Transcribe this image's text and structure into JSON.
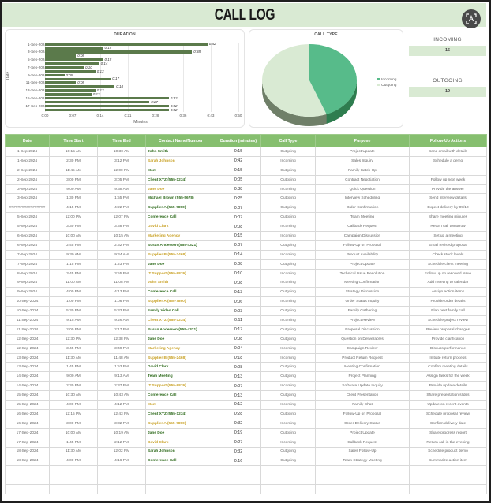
{
  "title": "CALL LOG",
  "ocr_button": {
    "icon": "text-recognition-icon"
  },
  "kpis": {
    "incoming_label": "INCOMING",
    "incoming_value": "15",
    "outgoing_label": "OUTGOING",
    "outgoing_value": "19"
  },
  "colors": {
    "title_bg": "#d9ead3",
    "header_bg": "#86bf6f",
    "bar": "#5b7a4b",
    "incoming_slice": "#57bb8a",
    "outgoing_slice": "#d9ead3",
    "contact_green": "#2f6b1d",
    "contact_yellow": "#c9a227"
  },
  "chart_data": [
    {
      "type": "bar",
      "title": "DURATION",
      "xlabel": "Minutes",
      "ylabel": "Date",
      "orientation": "horizontal",
      "xticks": [
        "0:00",
        "0:07",
        "0:14",
        "0:21",
        "0:28",
        "0:36",
        "0:43",
        "0:50"
      ],
      "xlim": [
        0,
        50
      ],
      "ytick_labels": [
        "1-Sep-2024",
        "3-Sep-2024",
        "5-Sep-2024",
        "7-Sep-2024",
        "9-Sep-2024",
        "11-Sep-2024",
        "13-Sep-2024",
        "15-Sep-2024",
        "17-Sep-2024"
      ],
      "categories": [
        "1-Sep-2024",
        "1-Sep-2024",
        "3-Sep-2024",
        "5-Sep-2024",
        "5-Sep-2024",
        "7-Sep-2024",
        "7-Sep-2024",
        "9-Sep-2024",
        "9-Sep-2024",
        "11-Sep-2024",
        "11-Sep-2024",
        "13-Sep-2024",
        "13-Sep-2024",
        "15-Sep-2024",
        "15-Sep-2024",
        "17-Sep-2024",
        "17-Sep-2024",
        "18-Sep-2024"
      ],
      "values": [
        42,
        15,
        38,
        8,
        15,
        14,
        10,
        13,
        5,
        17,
        8,
        18,
        13,
        12,
        32,
        27,
        32,
        32
      ],
      "labels": [
        "0:42",
        "0:15",
        "0:38",
        "0:08",
        "0:15",
        "0:14",
        "0:10",
        "0:13",
        "0:05",
        "0:17",
        "0:08",
        "0:18",
        "0:13",
        "0:12",
        "0:32",
        "0:27",
        "0:32",
        "0:32"
      ],
      "grid": true
    },
    {
      "type": "pie",
      "title": "CALL TYPE",
      "categories": [
        "Incoming",
        "Outgoing"
      ],
      "values": [
        15,
        19
      ],
      "legend_position": "right"
    }
  ],
  "table": {
    "headers": [
      "Date",
      "Time Start",
      "Time End",
      "Contact Name/Number",
      "Duration (minutes)",
      "Call Type",
      "Purpose",
      "Follow-Up Actions"
    ],
    "rows": [
      {
        "date": "1-Sep-2024",
        "start": "10:15 AM",
        "end": "10:30 AM",
        "contact": "John Smith",
        "tone": "green",
        "duration": "0:15",
        "type": "Outgoing",
        "purpose": "Project Update",
        "followup": "Send email with details"
      },
      {
        "date": "1-Sep-2024",
        "start": "2:30 PM",
        "end": "3:12 PM",
        "contact": "Sarah Johnson",
        "tone": "yellow",
        "duration": "0:42",
        "type": "Incoming",
        "purpose": "Sales Inquiry",
        "followup": "Schedule a demo"
      },
      {
        "date": "2-Sep-2024",
        "start": "11:45 AM",
        "end": "12:00 PM",
        "contact": "Mom",
        "tone": "green",
        "duration": "0:15",
        "type": "Outgoing",
        "purpose": "Family Catch-Up",
        "followup": ""
      },
      {
        "date": "2-Sep-2024",
        "start": "3:00 PM",
        "end": "3:05 PM",
        "contact": "Client XYZ (555-1234)",
        "tone": "green",
        "duration": "0:05",
        "type": "Outgoing",
        "purpose": "Contract Negotiation",
        "followup": "Follow up next week"
      },
      {
        "date": "3-Sep-2024",
        "start": "9:00 AM",
        "end": "9:38 AM",
        "contact": "Jane Doe",
        "tone": "yellow",
        "duration": "0:38",
        "type": "Incoming",
        "purpose": "Quick Question",
        "followup": "Provide the answer"
      },
      {
        "date": "3-Sep-2024",
        "start": "1:30 PM",
        "end": "1:55 PM",
        "contact": "Michael Brown (555-5678)",
        "tone": "green",
        "duration": "0:25",
        "type": "Outgoing",
        "purpose": "Interview Scheduling",
        "followup": "Send interview details"
      },
      {
        "date": "#################",
        "start": "4:15 PM",
        "end": "4:22 PM",
        "contact": "Supplier A (555-7890)",
        "tone": "green",
        "duration": "0:07",
        "type": "Outgoing",
        "purpose": "Order Confirmation",
        "followup": "Expect delivery by 09/10"
      },
      {
        "date": "5-Sep-2024",
        "start": "12:00 PM",
        "end": "12:07 PM",
        "contact": "Conference Call",
        "tone": "green",
        "duration": "0:07",
        "type": "Outgoing",
        "purpose": "Team Meeting",
        "followup": "Share meeting minutes"
      },
      {
        "date": "5-Sep-2024",
        "start": "3:30 PM",
        "end": "3:38 PM",
        "contact": "David Clark",
        "tone": "yellow",
        "duration": "0:08",
        "type": "Incoming",
        "purpose": "Callback Request",
        "followup": "Return call tomorrow"
      },
      {
        "date": "6-Sep-2024",
        "start": "10:00 AM",
        "end": "10:15 AM",
        "contact": "Marketing Agency",
        "tone": "yellow",
        "duration": "0:15",
        "type": "Incoming",
        "purpose": "Campaign Discussion",
        "followup": "Set up a meeting"
      },
      {
        "date": "6-Sep-2024",
        "start": "2:45 PM",
        "end": "2:52 PM",
        "contact": "Susan Anderson (555-4321)",
        "tone": "green",
        "duration": "0:07",
        "type": "Outgoing",
        "purpose": "Follow-Up on Proposal",
        "followup": "Email revised proposal"
      },
      {
        "date": "7-Sep-2024",
        "start": "9:30 AM",
        "end": "9:44 AM",
        "contact": "Supplier B (555-2468)",
        "tone": "yellow",
        "duration": "0:14",
        "type": "Incoming",
        "purpose": "Product Availability",
        "followup": "Check stock levels"
      },
      {
        "date": "7-Sep-2024",
        "start": "1:15 PM",
        "end": "1:23 PM",
        "contact": "Jane Doe",
        "tone": "green",
        "duration": "0:08",
        "type": "Outgoing",
        "purpose": "Project Update",
        "followup": "Schedule client meeting"
      },
      {
        "date": "8-Sep-2024",
        "start": "3:45 PM",
        "end": "3:55 PM",
        "contact": "IT Support (555-9876)",
        "tone": "yellow",
        "duration": "0:10",
        "type": "Incoming",
        "purpose": "Technical Issue Resolution",
        "followup": "Follow up on resolved issue"
      },
      {
        "date": "9-Sep-2024",
        "start": "11:00 AM",
        "end": "11:08 AM",
        "contact": "John Smith",
        "tone": "yellow",
        "duration": "0:08",
        "type": "Incoming",
        "purpose": "Meeting Confirmation",
        "followup": "Add meeting to calendar"
      },
      {
        "date": "9-Sep-2024",
        "start": "4:00 PM",
        "end": "4:13 PM",
        "contact": "Conference Call",
        "tone": "green",
        "duration": "0:13",
        "type": "Outgoing",
        "purpose": "Strategy Discussion",
        "followup": "Assign action items"
      },
      {
        "date": "10-Sep-2024",
        "start": "1:00 PM",
        "end": "1:06 PM",
        "contact": "Supplier A (555-7890)",
        "tone": "yellow",
        "duration": "0:06",
        "type": "Incoming",
        "purpose": "Order Status Inquiry",
        "followup": "Provide order details"
      },
      {
        "date": "10-Sep-2024",
        "start": "5:30 PM",
        "end": "5:33 PM",
        "contact": "Family Video Call",
        "tone": "green",
        "duration": "0:03",
        "type": "Outgoing",
        "purpose": "Family Gathering",
        "followup": "Plan next family call"
      },
      {
        "date": "11-Sep-2024",
        "start": "9:15 AM",
        "end": "9:26 AM",
        "contact": "Client XYZ (555-1234)",
        "tone": "yellow",
        "duration": "0:11",
        "type": "Incoming",
        "purpose": "Project Review",
        "followup": "Schedule project review"
      },
      {
        "date": "11-Sep-2024",
        "start": "2:00 PM",
        "end": "2:17 PM",
        "contact": "Susan Anderson (555-4321)",
        "tone": "green",
        "duration": "0:17",
        "type": "Outgoing",
        "purpose": "Proposal Discussion",
        "followup": "Review proposal changes"
      },
      {
        "date": "12-Sep-2024",
        "start": "12:30 PM",
        "end": "12:38 PM",
        "contact": "Jane Doe",
        "tone": "green",
        "duration": "0:08",
        "type": "Outgoing",
        "purpose": "Question on Deliverables",
        "followup": "Provide clarification"
      },
      {
        "date": "12-Sep-2024",
        "start": "3:45 PM",
        "end": "3:49 PM",
        "contact": "Marketing Agency",
        "tone": "yellow",
        "duration": "0:04",
        "type": "Incoming",
        "purpose": "Campaign Review",
        "followup": "Discuss performance"
      },
      {
        "date": "13-Sep-2024",
        "start": "11:30 AM",
        "end": "11:48 AM",
        "contact": "Supplier B (555-2468)",
        "tone": "yellow",
        "duration": "0:18",
        "type": "Incoming",
        "purpose": "Product Return Request",
        "followup": "Initiate return process"
      },
      {
        "date": "13-Sep-2024",
        "start": "1:45 PM",
        "end": "1:53 PM",
        "contact": "David Clark",
        "tone": "green",
        "duration": "0:08",
        "type": "Outgoing",
        "purpose": "Meeting Confirmation",
        "followup": "Confirm meeting details"
      },
      {
        "date": "14-Sep-2024",
        "start": "9:00 AM",
        "end": "9:13 AM",
        "contact": "Team Meeting",
        "tone": "green",
        "duration": "0:13",
        "type": "Outgoing",
        "purpose": "Project Planning",
        "followup": "Assign tasks for the week"
      },
      {
        "date": "14-Sep-2024",
        "start": "2:30 PM",
        "end": "2:37 PM",
        "contact": "IT Support (555-9876)",
        "tone": "yellow",
        "duration": "0:07",
        "type": "Incoming",
        "purpose": "Software Update Inquiry",
        "followup": "Provide update details"
      },
      {
        "date": "15-Sep-2024",
        "start": "10:30 AM",
        "end": "10:43 AM",
        "contact": "Conference Call",
        "tone": "green",
        "duration": "0:13",
        "type": "Outgoing",
        "purpose": "Client Presentation",
        "followup": "Share presentation slides"
      },
      {
        "date": "15-Sep-2024",
        "start": "4:00 PM",
        "end": "4:12 PM",
        "contact": "Mom",
        "tone": "yellow",
        "duration": "0:12",
        "type": "Incoming",
        "purpose": "Family Chat",
        "followup": "Update on recent events"
      },
      {
        "date": "16-Sep-2024",
        "start": "12:15 PM",
        "end": "12:43 PM",
        "contact": "Client XYZ (555-1234)",
        "tone": "green",
        "duration": "0:28",
        "type": "Outgoing",
        "purpose": "Follow-Up on Proposal",
        "followup": "Schedule proposal review"
      },
      {
        "date": "16-Sep-2024",
        "start": "3:00 PM",
        "end": "3:32 PM",
        "contact": "Supplier A (555-7890)",
        "tone": "yellow",
        "duration": "0:32",
        "type": "Incoming",
        "purpose": "Order Delivery Status",
        "followup": "Confirm delivery date"
      },
      {
        "date": "17-Sep-2024",
        "start": "10:00 AM",
        "end": "10:19 AM",
        "contact": "Jane Doe",
        "tone": "green",
        "duration": "0:19",
        "type": "Outgoing",
        "purpose": "Project Update",
        "followup": "Share progress report"
      },
      {
        "date": "17-Sep-2024",
        "start": "1:45 PM",
        "end": "2:12 PM",
        "contact": "David Clark",
        "tone": "yellow",
        "duration": "0:27",
        "type": "Incoming",
        "purpose": "Callback Request",
        "followup": "Return call in the evening"
      },
      {
        "date": "18-Sep-2024",
        "start": "11:30 AM",
        "end": "12:02 PM",
        "contact": "Sarah Johnson",
        "tone": "green",
        "duration": "0:32",
        "type": "Outgoing",
        "purpose": "Sales Follow-Up",
        "followup": "Schedule product demo"
      },
      {
        "date": "18-Sep-2024",
        "start": "4:00 PM",
        "end": "4:16 PM",
        "contact": "Conference Call",
        "tone": "green",
        "duration": "0:16",
        "type": "Outgoing",
        "purpose": "Team Strategy Meeting",
        "followup": "Summarize action item"
      }
    ],
    "empty_rows": 3
  }
}
